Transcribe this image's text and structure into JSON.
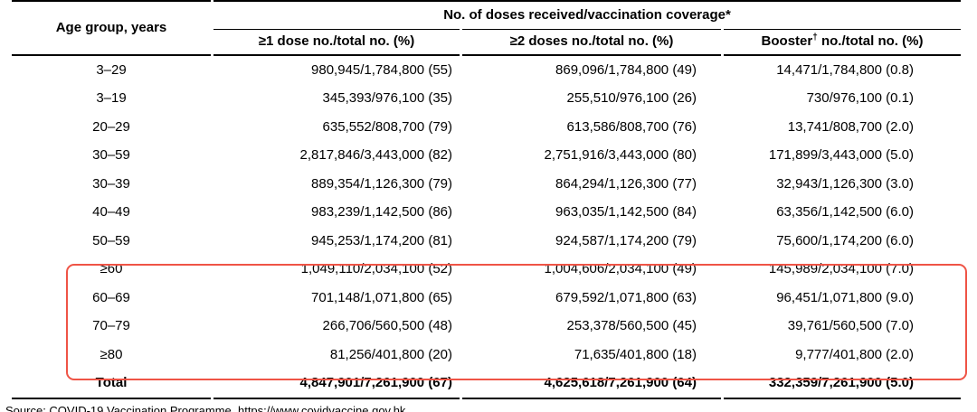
{
  "table": {
    "headers": {
      "age_col": "Age group, years",
      "group": "No. of doses received/vaccination coverage*",
      "dose1": "≥1 dose no./total no. (%)",
      "dose2": "≥2 doses no./total no. (%)",
      "booster_pre": "Booster",
      "booster_sup": "†",
      "booster_post": " no./total no. (%)"
    },
    "rows": [
      {
        "age": "3–29",
        "dose1": "980,945/1,784,800 (55)",
        "dose2": "869,096/1,784,800 (49)",
        "booster": "14,471/1,784,800 (0.8)",
        "bold": false,
        "highlighted": false
      },
      {
        "age": "3–19",
        "dose1": "345,393/976,100 (35)",
        "dose2": "255,510/976,100 (26)",
        "booster": "730/976,100 (0.1)",
        "bold": false,
        "highlighted": false
      },
      {
        "age": "20–29",
        "dose1": "635,552/808,700 (79)",
        "dose2": "613,586/808,700 (76)",
        "booster": "13,741/808,700 (2.0)",
        "bold": false,
        "highlighted": false
      },
      {
        "age": "30–59",
        "dose1": "2,817,846/3,443,000 (82)",
        "dose2": "2,751,916/3,443,000 (80)",
        "booster": "171,899/3,443,000 (5.0)",
        "bold": false,
        "highlighted": false
      },
      {
        "age": "30–39",
        "dose1": "889,354/1,126,300 (79)",
        "dose2": "864,294/1,126,300 (77)",
        "booster": "32,943/1,126,300 (3.0)",
        "bold": false,
        "highlighted": false
      },
      {
        "age": "40–49",
        "dose1": "983,239/1,142,500 (86)",
        "dose2": "963,035/1,142,500 (84)",
        "booster": "63,356/1,142,500 (6.0)",
        "bold": false,
        "highlighted": false
      },
      {
        "age": "50–59",
        "dose1": "945,253/1,174,200 (81)",
        "dose2": "924,587/1,174,200 (79)",
        "booster": "75,600/1,174,200 (6.0)",
        "bold": false,
        "highlighted": false
      },
      {
        "age": "≥60",
        "dose1": "1,049,110/2,034,100 (52)",
        "dose2": "1,004,606/2,034,100 (49)",
        "booster": "145,989/2,034,100 (7.0)",
        "bold": false,
        "highlighted": true
      },
      {
        "age": "60–69",
        "dose1": "701,148/1,071,800 (65)",
        "dose2": "679,592/1,071,800 (63)",
        "booster": "96,451/1,071,800 (9.0)",
        "bold": false,
        "highlighted": true
      },
      {
        "age": "70–79",
        "dose1": "266,706/560,500 (48)",
        "dose2": "253,378/560,500 (45)",
        "booster": "39,761/560,500 (7.0)",
        "bold": false,
        "highlighted": true
      },
      {
        "age": "≥80",
        "dose1": "81,256/401,800 (20)",
        "dose2": "71,635/401,800 (18)",
        "booster": "9,777/401,800 (2.0)",
        "bold": false,
        "highlighted": true
      },
      {
        "age": "Total",
        "dose1": "4,847,901/7,261,900 (67)",
        "dose2": "4,625,618/7,261,900 (64)",
        "booster": "332,359/7,261,900 (5.0)",
        "bold": true,
        "highlighted": false
      }
    ]
  },
  "highlight_box": {
    "color": "#ef5446",
    "first_row": "≥60",
    "last_row": "≥80"
  },
  "footer": {
    "source": "Source: COVID-19 Vaccination Programme, https://www.covidvaccine.gov.hk"
  }
}
